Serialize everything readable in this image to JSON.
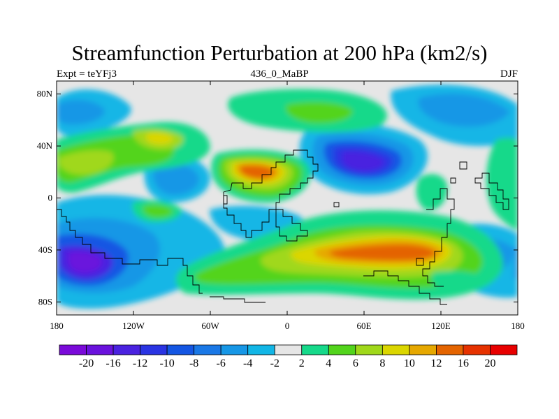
{
  "title": "Streamfunction Perturbation at 200 hPa (km2/s)",
  "left_string": "Expt = teYFj3",
  "center_string": "436_0_MaBP",
  "right_string": "DJF",
  "map": {
    "lat_range": [
      -90,
      90
    ],
    "lon_range": [
      -180,
      180
    ],
    "lat_ticks": [
      {
        "value": 80,
        "label": "80N"
      },
      {
        "value": 40,
        "label": "40N"
      },
      {
        "value": 0,
        "label": "0"
      },
      {
        "value": -40,
        "label": "40S"
      },
      {
        "value": -80,
        "label": "80S"
      }
    ],
    "lon_ticks": [
      {
        "value": -180,
        "label": "180"
      },
      {
        "value": -120,
        "label": "120W"
      },
      {
        "value": -60,
        "label": "60W"
      },
      {
        "value": 0,
        "label": "0"
      },
      {
        "value": 60,
        "label": "60E"
      },
      {
        "value": 120,
        "label": "120E"
      },
      {
        "value": 180,
        "label": "180"
      }
    ],
    "background_color": "#e6e6e6",
    "coastline_color": "#000000"
  },
  "colorbar": {
    "colors": [
      "#7a0ad9",
      "#6a12dd",
      "#4a22e0",
      "#2a34e3",
      "#1456e3",
      "#1a78e6",
      "#1797e6",
      "#12b6e6",
      "#e6e6e6",
      "#16d98a",
      "#52d41c",
      "#a0d81a",
      "#dbd600",
      "#e6a800",
      "#e46400",
      "#e63200",
      "#e80000"
    ],
    "levels": [
      "-20",
      "-16",
      "-12",
      "-10",
      "-8",
      "-6",
      "-4",
      "-2",
      "2",
      "4",
      "6",
      "8",
      "10",
      "12",
      "16",
      "20"
    ]
  }
}
